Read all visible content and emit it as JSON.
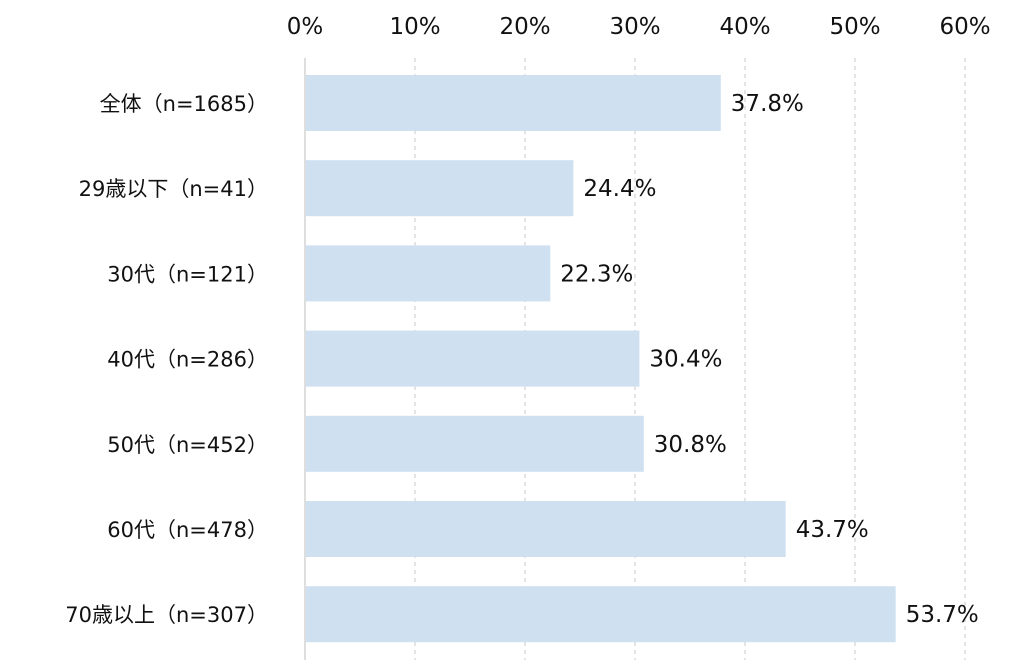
{
  "chart_data": {
    "type": "bar",
    "orientation": "horizontal",
    "categories": [
      "全体（n=1685）",
      "29歳以下（n=41）",
      "30代（n=121）",
      "40代（n=286）",
      "50代（n=452）",
      "60代（n=478）",
      "70歳以上（n=307）"
    ],
    "values": [
      37.8,
      24.4,
      22.3,
      30.4,
      30.8,
      43.7,
      53.7
    ],
    "value_labels": [
      "37.8%",
      "24.4%",
      "22.3%",
      "30.4%",
      "30.8%",
      "43.7%",
      "53.7%"
    ],
    "xticks": [
      0,
      10,
      20,
      30,
      40,
      50,
      60
    ],
    "xtick_labels": [
      "0%",
      "10%",
      "20%",
      "30%",
      "40%",
      "50%",
      "60%"
    ],
    "xlim": [
      0,
      60
    ],
    "grid": true,
    "x_axis_position": "top",
    "title": "",
    "xlabel": "",
    "ylabel": "",
    "colors": {
      "bar": "#cfe0f1",
      "grid": "#c8c8c8",
      "axis": "#bdbdbd",
      "text": "#111111"
    }
  }
}
